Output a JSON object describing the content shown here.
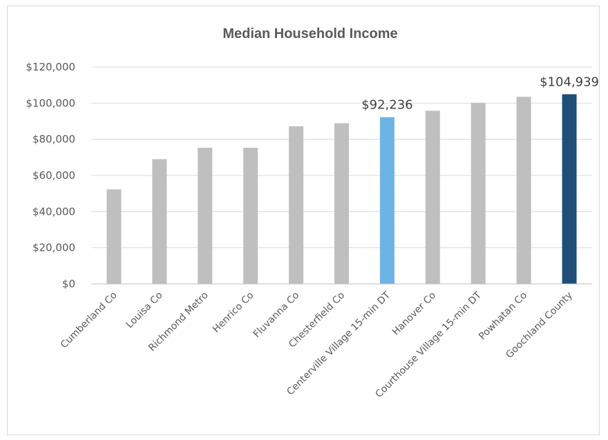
{
  "chart_data": {
    "type": "bar",
    "title": "Median Household Income",
    "categories": [
      "Cumberland Co",
      "Louisa Co",
      "Richmond Metro",
      "Henrico Co",
      "Fluvanna Co",
      "Chesterfield Co",
      "Centerville Village 15-min DT",
      "Hanover Co",
      "Courthouse Village 15-min DT",
      "Powhatan Co",
      "Goochland County"
    ],
    "values": [
      52300,
      69000,
      75300,
      75300,
      87200,
      88900,
      92236,
      95800,
      100200,
      103500,
      104939
    ],
    "data_labels": {
      "6": "$92,236",
      "10": "$104,939"
    },
    "ylim": [
      0,
      120000
    ],
    "yticks": [
      0,
      20000,
      40000,
      60000,
      80000,
      100000,
      120000
    ],
    "ytick_labels": [
      "$0",
      "$20,000",
      "$40,000",
      "$60,000",
      "$80,000",
      "$100,000",
      "$120,000"
    ],
    "grid": true,
    "colors": {
      "default": "#bfbfbf",
      "highlight_light": "#6cb4e4",
      "highlight_dark": "#1f4e79"
    },
    "highlights": {
      "6": "highlight_light",
      "10": "highlight_dark"
    }
  }
}
